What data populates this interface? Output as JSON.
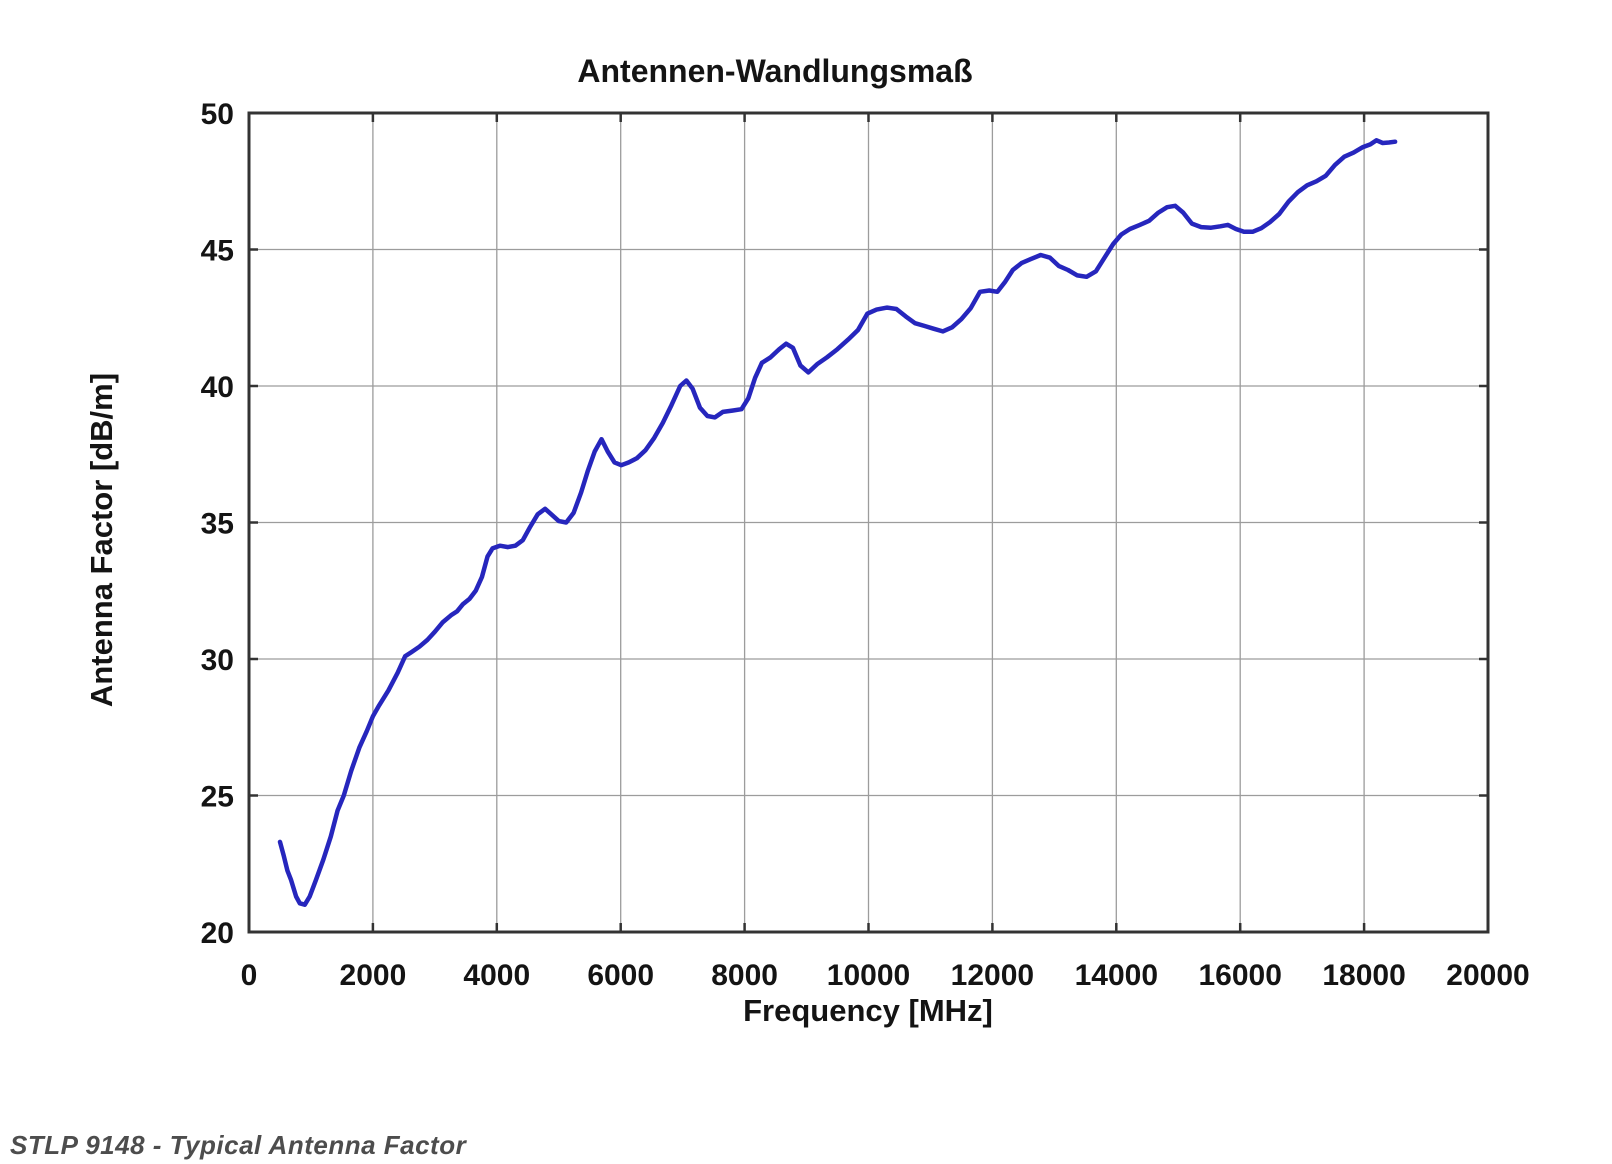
{
  "caption": "STLP 9148 - Typical Antenna Factor",
  "chart_data": {
    "type": "line",
    "title": "Antennen-Wandlungsmaß",
    "xlabel": "Frequency [MHz]",
    "ylabel": "Antenna Factor [dB/m]",
    "xlim": [
      0,
      20000
    ],
    "ylim": [
      20,
      50
    ],
    "x_ticks": [
      0,
      2000,
      4000,
      6000,
      8000,
      10000,
      12000,
      14000,
      16000,
      18000,
      20000
    ],
    "y_ticks": [
      20,
      25,
      30,
      35,
      40,
      45,
      50
    ],
    "grid": true,
    "legend": "none",
    "line_color": "#2626bd",
    "grid_color": "#9c9c9c",
    "axis_color": "#333333",
    "series": [
      {
        "name": "Typical Antenna Factor",
        "x": [
          500,
          560,
          620,
          680,
          760,
          820,
          900,
          980,
          1080,
          1200,
          1320,
          1430,
          1530,
          1650,
          1780,
          1900,
          2000,
          2100,
          2250,
          2400,
          2520,
          2620,
          2750,
          2880,
          3000,
          3130,
          3260,
          3360,
          3450,
          3560,
          3660,
          3760,
          3850,
          3930,
          4050,
          4180,
          4300,
          4420,
          4540,
          4660,
          4780,
          4880,
          5000,
          5120,
          5240,
          5360,
          5470,
          5580,
          5690,
          5790,
          5900,
          6010,
          6130,
          6260,
          6400,
          6540,
          6680,
          6820,
          6960,
          7060,
          7160,
          7280,
          7400,
          7520,
          7650,
          7800,
          7950,
          8060,
          8170,
          8280,
          8420,
          8560,
          8670,
          8780,
          8900,
          9030,
          9170,
          9330,
          9500,
          9670,
          9830,
          9980,
          10130,
          10300,
          10450,
          10600,
          10750,
          10900,
          11050,
          11200,
          11350,
          11500,
          11650,
          11800,
          11950,
          12080,
          12200,
          12330,
          12470,
          12620,
          12780,
          12930,
          13070,
          13220,
          13370,
          13520,
          13670,
          13810,
          13950,
          14080,
          14220,
          14380,
          14530,
          14680,
          14820,
          14950,
          15080,
          15220,
          15370,
          15530,
          15680,
          15800,
          15930,
          16060,
          16200,
          16340,
          16480,
          16630,
          16780,
          16930,
          17080,
          17230,
          17380,
          17530,
          17680,
          17830,
          17980,
          18100,
          18200,
          18300,
          18400,
          18500
        ],
        "y": [
          23.3,
          22.8,
          22.25,
          21.9,
          21.3,
          21.05,
          21.0,
          21.3,
          21.9,
          22.65,
          23.5,
          24.45,
          25.0,
          25.9,
          26.75,
          27.35,
          27.9,
          28.3,
          28.85,
          29.5,
          30.1,
          30.25,
          30.45,
          30.7,
          31.0,
          31.35,
          31.6,
          31.75,
          32.0,
          32.2,
          32.5,
          33.0,
          33.75,
          34.05,
          34.15,
          34.1,
          34.15,
          34.35,
          34.85,
          35.3,
          35.5,
          35.3,
          35.05,
          35.0,
          35.35,
          36.1,
          36.9,
          37.6,
          38.05,
          37.6,
          37.2,
          37.1,
          37.2,
          37.35,
          37.65,
          38.1,
          38.65,
          39.3,
          40.0,
          40.2,
          39.9,
          39.2,
          38.9,
          38.85,
          39.05,
          39.1,
          39.15,
          39.55,
          40.3,
          40.85,
          41.05,
          41.35,
          41.55,
          41.4,
          40.75,
          40.5,
          40.8,
          41.05,
          41.35,
          41.7,
          42.05,
          42.65,
          42.8,
          42.87,
          42.82,
          42.55,
          42.3,
          42.2,
          42.1,
          42.0,
          42.15,
          42.45,
          42.85,
          43.45,
          43.5,
          43.45,
          43.8,
          44.25,
          44.5,
          44.65,
          44.8,
          44.7,
          44.4,
          44.25,
          44.05,
          44.0,
          44.2,
          44.7,
          45.2,
          45.55,
          45.75,
          45.9,
          46.05,
          46.35,
          46.55,
          46.6,
          46.35,
          45.95,
          45.82,
          45.8,
          45.85,
          45.9,
          45.75,
          45.65,
          45.65,
          45.78,
          46.0,
          46.3,
          46.75,
          47.1,
          47.35,
          47.5,
          47.7,
          48.1,
          48.4,
          48.55,
          48.75,
          48.85,
          49.0,
          48.9,
          48.92,
          48.95
        ]
      }
    ]
  }
}
